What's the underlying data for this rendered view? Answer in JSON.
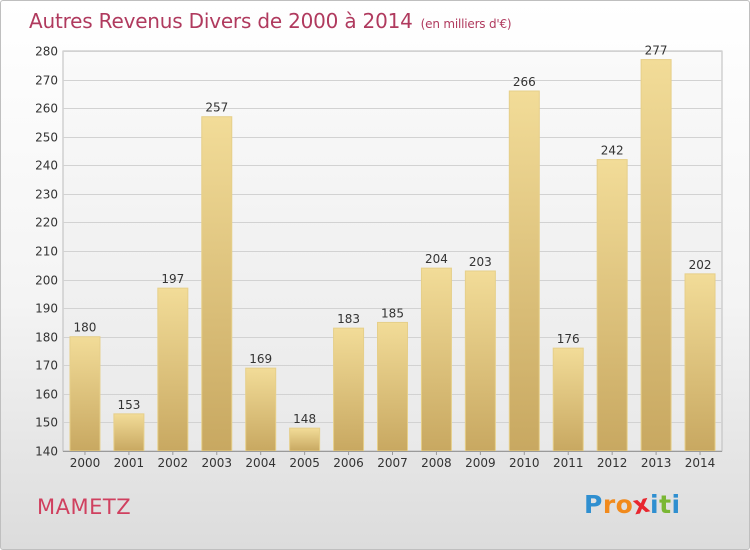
{
  "chart_data": {
    "type": "bar",
    "title": "Autres Revenus Divers de 2000 à 2014",
    "subtitle": "(en milliers d'€)",
    "categories": [
      "2000",
      "2001",
      "2002",
      "2003",
      "2004",
      "2005",
      "2006",
      "2007",
      "2008",
      "2009",
      "2010",
      "2011",
      "2012",
      "2013",
      "2014"
    ],
    "values": [
      180,
      153,
      197,
      257,
      169,
      148,
      183,
      185,
      204,
      203,
      266,
      176,
      242,
      277,
      202
    ],
    "ylim": [
      140,
      280
    ],
    "yticks": [
      140,
      150,
      160,
      170,
      180,
      190,
      200,
      210,
      220,
      230,
      240,
      250,
      260,
      270,
      280
    ],
    "grid": true,
    "colors": {
      "bar_top": "#f2dc98",
      "bar_bottom": "#c8a861",
      "bar_edge": "#e6cf8a",
      "title": "#b03a5e"
    }
  },
  "commune": "MAMETZ",
  "brand": {
    "letters": [
      "P",
      "r",
      "o",
      "x",
      "i",
      "t",
      "i"
    ],
    "colors": [
      "#2f8fd0",
      "#f18a1c",
      "#f18a1c",
      "#e8262e",
      "#2f8fd0",
      "#7ab733",
      "#2f8fd0"
    ]
  }
}
